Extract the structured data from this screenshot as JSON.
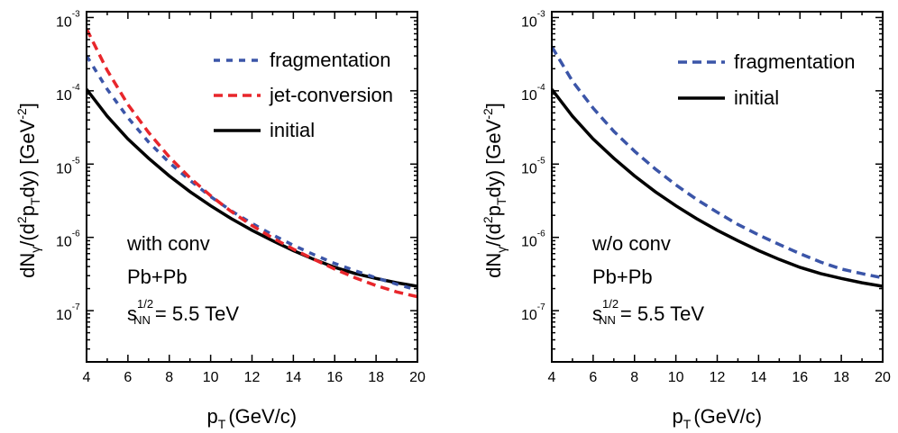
{
  "chart_data": [
    {
      "type": "line",
      "panel": "left",
      "xlabel": "p",
      "xlabel_sub": "T",
      "xlabel_rest": "(GeV/c)",
      "ylabel": "dN",
      "ylabel_parts": [
        "dN",
        "γ",
        "/(d",
        "2",
        "p",
        "T",
        "dy) [GeV",
        "-2",
        "]"
      ],
      "xlim": [
        4,
        20
      ],
      "ylim": [
        2e-08,
        0.0012
      ],
      "yscale": "log",
      "xticks": [
        "4",
        "6",
        "8",
        "10",
        "12",
        "14",
        "16",
        "18",
        "20"
      ],
      "yticks": [
        {
          "base": "10",
          "exp": "-7",
          "value": 1e-07
        },
        {
          "base": "10",
          "exp": "-6",
          "value": 1e-06
        },
        {
          "base": "10",
          "exp": "-5",
          "value": 1e-05
        },
        {
          "base": "10",
          "exp": "-4",
          "value": 0.0001
        },
        {
          "base": "10",
          "exp": "-3",
          "value": 0.001
        }
      ],
      "legend": [
        {
          "label": "fragmentation",
          "color": "#3b55a8",
          "style": "dotted"
        },
        {
          "label": "jet-conversion",
          "color": "#e8262b",
          "style": "dashed"
        },
        {
          "label": "initial",
          "color": "#000000",
          "style": "solid"
        }
      ],
      "annotations": {
        "scenario": "with conv",
        "scenario_color": "#e8262b",
        "system": "Pb+Pb",
        "energy_s": "s",
        "energy_sup": "1/2",
        "energy_sub": "NN",
        "energy_val": "= 5.5 TeV"
      },
      "series": [
        {
          "name": "initial",
          "color": "#000000",
          "style": "solid",
          "x": [
            4,
            5,
            6,
            7,
            8,
            9,
            10,
            11,
            12,
            13,
            14,
            15,
            16,
            17,
            18,
            19,
            20
          ],
          "y": [
            0.000105,
            4.5e-05,
            2.2e-05,
            1.2e-05,
            6.9e-06,
            4.2e-06,
            2.7e-06,
            1.8e-06,
            1.25e-06,
            9e-07,
            6.6e-07,
            5e-07,
            3.9e-07,
            3.2e-07,
            2.75e-07,
            2.4e-07,
            2.15e-07
          ]
        },
        {
          "name": "fragmentation",
          "color": "#3b55a8",
          "style": "dotted",
          "x": [
            4,
            5,
            6,
            7,
            8,
            9,
            10,
            11,
            12,
            13,
            14,
            15,
            16,
            17,
            18,
            19,
            20
          ],
          "y": [
            0.0003,
            0.000105,
            4.3e-05,
            2e-05,
            1.05e-05,
            6e-06,
            3.6e-06,
            2.3e-06,
            1.55e-06,
            1.08e-06,
            7.8e-07,
            5.8e-07,
            4.4e-07,
            3.5e-07,
            2.8e-07,
            2.3e-07,
            1.9e-07
          ]
        },
        {
          "name": "jet-conversion",
          "color": "#e8262b",
          "style": "dashed",
          "x": [
            4,
            5,
            6,
            7,
            8,
            9,
            10,
            11,
            12,
            13,
            14,
            15,
            16,
            17,
            18,
            19,
            20
          ],
          "y": [
            0.0007,
            0.00019,
            6.5e-05,
            2.7e-05,
            1.25e-05,
            6.5e-06,
            3.7e-06,
            2.25e-06,
            1.45e-06,
            9.8e-07,
            6.9e-07,
            5e-07,
            3.7e-07,
            2.8e-07,
            2.2e-07,
            1.8e-07,
            1.55e-07
          ]
        }
      ]
    },
    {
      "type": "line",
      "panel": "right",
      "xlabel": "p",
      "xlabel_sub": "T",
      "xlabel_rest": "(GeV/c)",
      "ylabel": "dN",
      "ylabel_parts": [
        "dN",
        "γ",
        "/(d",
        "2",
        "p",
        "T",
        "dy) [GeV",
        "-2",
        "]"
      ],
      "xlim": [
        4,
        20
      ],
      "ylim": [
        2e-08,
        0.0012
      ],
      "yscale": "log",
      "xticks": [
        "4",
        "6",
        "8",
        "10",
        "12",
        "14",
        "16",
        "18",
        "20"
      ],
      "yticks": [
        {
          "base": "10",
          "exp": "-7",
          "value": 1e-07
        },
        {
          "base": "10",
          "exp": "-6",
          "value": 1e-06
        },
        {
          "base": "10",
          "exp": "-5",
          "value": 1e-05
        },
        {
          "base": "10",
          "exp": "-4",
          "value": 0.0001
        },
        {
          "base": "10",
          "exp": "-3",
          "value": 0.001
        }
      ],
      "legend": [
        {
          "label": "fragmentation",
          "color": "#3b55a8",
          "style": "dashed"
        },
        {
          "label": "initial",
          "color": "#000000",
          "style": "solid"
        }
      ],
      "annotations": {
        "scenario": "w/o conv",
        "scenario_color": "#e8262b",
        "system": "Pb+Pb",
        "energy_s": "s",
        "energy_sup": "1/2",
        "energy_sub": "NN",
        "energy_val": "= 5.5 TeV"
      },
      "series": [
        {
          "name": "initial",
          "color": "#000000",
          "style": "solid",
          "x": [
            4,
            5,
            6,
            7,
            8,
            9,
            10,
            11,
            12,
            13,
            14,
            15,
            16,
            17,
            18,
            19,
            20
          ],
          "y": [
            0.000105,
            4.5e-05,
            2.2e-05,
            1.2e-05,
            6.9e-06,
            4.2e-06,
            2.7e-06,
            1.8e-06,
            1.25e-06,
            9e-07,
            6.6e-07,
            5e-07,
            3.9e-07,
            3.2e-07,
            2.75e-07,
            2.4e-07,
            2.15e-07
          ]
        },
        {
          "name": "fragmentation",
          "color": "#3b55a8",
          "style": "dashed",
          "x": [
            4,
            5,
            6,
            7,
            8,
            9,
            10,
            11,
            12,
            13,
            14,
            15,
            16,
            17,
            18,
            19,
            20
          ],
          "y": [
            0.0004,
            0.000135,
            5.8e-05,
            2.8e-05,
            1.5e-05,
            8.6e-06,
            5.2e-06,
            3.3e-06,
            2.2e-06,
            1.5e-06,
            1.08e-06,
            8e-07,
            6e-07,
            4.6e-07,
            3.7e-07,
            3.2e-07,
            2.8e-07
          ]
        }
      ]
    }
  ]
}
